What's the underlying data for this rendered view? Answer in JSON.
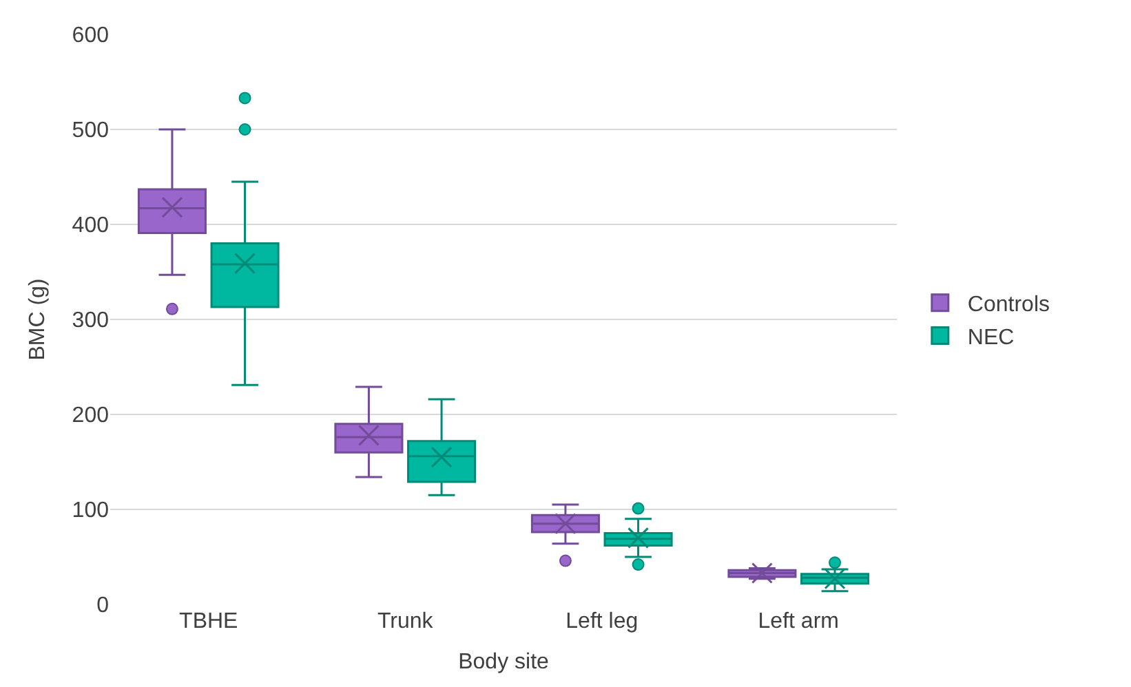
{
  "chart_data": {
    "type": "box",
    "xlabel": "Body site",
    "ylabel": "BMC (g)",
    "categories": [
      "TBHE",
      "Trunk",
      "Left leg",
      "Left arm"
    ],
    "ylim": [
      0,
      600
    ],
    "yticks": [
      0,
      100,
      200,
      300,
      400,
      500,
      600
    ],
    "grid": "y",
    "legend": "right",
    "series": [
      {
        "name": "Controls",
        "color": "#9966cc",
        "boxes": [
          {
            "low": 347,
            "q1": 391,
            "median": 417,
            "q3": 437,
            "high": 500,
            "mean": 418,
            "outliers": [
              311
            ]
          },
          {
            "low": 134,
            "q1": 160,
            "median": 176,
            "q3": 190,
            "high": 229,
            "mean": 178
          },
          {
            "low": 64,
            "q1": 76,
            "median": 85,
            "q3": 94,
            "high": 105,
            "mean": 85,
            "outliers": [
              46
            ]
          },
          {
            "low": 27,
            "q1": 29,
            "median": 33,
            "q3": 36,
            "high": 38,
            "mean": 33
          }
        ]
      },
      {
        "name": "NEC",
        "color": "#00b8a0",
        "boxes": [
          {
            "low": 231,
            "q1": 313,
            "median": 358,
            "q3": 380,
            "high": 445,
            "mean": 359,
            "outliers": [
              500,
              533
            ]
          },
          {
            "low": 115,
            "q1": 129,
            "median": 156,
            "q3": 172,
            "high": 216,
            "mean": 155
          },
          {
            "low": 50,
            "q1": 62,
            "median": 69,
            "q3": 75,
            "high": 90,
            "mean": 70,
            "outliers": [
              42,
              101
            ]
          },
          {
            "low": 14,
            "q1": 22,
            "median": 28,
            "q3": 32,
            "high": 37,
            "mean": 27,
            "outliers": [
              44
            ]
          }
        ]
      }
    ]
  }
}
